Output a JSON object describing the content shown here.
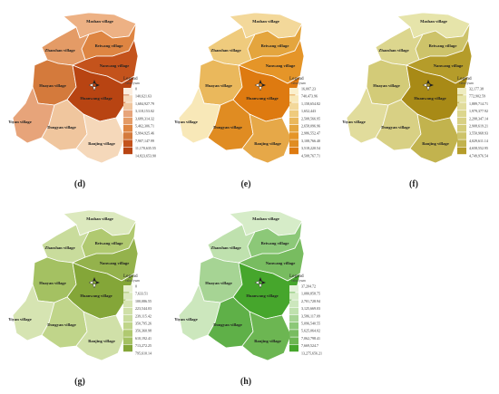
{
  "village_labels": {
    "mashan": "Mashan village",
    "beiwang": "Beiwang village",
    "zhaoshan": "Zhaoshan village",
    "nanwang": "Nanwang village",
    "huayan": "Huayan village",
    "huanwang": "Huanwang village",
    "yiyan": "Yiyan village",
    "dongyan": "Dongyan village",
    "banjing": "Banjing village"
  },
  "legend_title": "Legend",
  "legend_subtitle": "value/yuan",
  "panels": [
    {
      "id": "d",
      "label": "(d)",
      "colors": {
        "mashan": "#edb184",
        "beiwang": "#de8542",
        "zhaoshan": "#e49b66",
        "nanwang": "#c4531c",
        "huayan": "#d47a3c",
        "huanwang": "#b84412",
        "yiyan": "#e7a47a",
        "dongyan": "#f0c69e",
        "banjing": "#f5d8ba"
      },
      "legend_colors": [
        "#fbeee0",
        "#f5d8ba",
        "#f0c69e",
        "#e7a47a",
        "#e49b66",
        "#de8542",
        "#d47a3c",
        "#c4531c",
        "#b84412"
      ],
      "legend_values": [
        "0",
        "140,621.63",
        "1,684,927.79",
        "3,118,153.02",
        "3,689,314.32",
        "5,462,306.71",
        "5,994,925.46",
        "7,907,147.99",
        "11,170,635.55",
        "14,823,653.90"
      ]
    },
    {
      "id": "e",
      "label": "(e)",
      "colors": {
        "mashan": "#f3d89a",
        "beiwang": "#e4a53e",
        "zhaoshan": "#efcb7d",
        "nanwang": "#e59528",
        "huayan": "#eab85c",
        "huanwang": "#de7a10",
        "yiyan": "#f8e8b8",
        "dongyan": "#e08c22",
        "banjing": "#e6a848"
      },
      "legend_colors": [
        "#fbf0cc",
        "#f8e8b8",
        "#f3d89a",
        "#efcb7d",
        "#eab85c",
        "#e4a53e",
        "#e59528",
        "#e08c22",
        "#de7a10"
      ],
      "legend_values": [
        "16,007.23",
        "740,473.96",
        "1,158,654.82",
        "1,652,443",
        "2,508,566.95",
        "2,658,096.96",
        "2,986,552.47",
        "3,108,766.40",
        "3,518,220.54",
        "4,508,767.71"
      ]
    },
    {
      "id": "f",
      "label": "(f)",
      "colors": {
        "mashan": "#e6e4aa",
        "beiwang": "#cdc36a",
        "zhaoshan": "#dcd68e",
        "nanwang": "#b59c2a",
        "huayan": "#d3cb78",
        "huanwang": "#a88a16",
        "yiyan": "#e1dc9c",
        "dongyan": "#d8d084",
        "banjing": "#c2b34e"
      },
      "legend_colors": [
        "#eeecc0",
        "#e6e4aa",
        "#e1dc9c",
        "#dcd68e",
        "#d8d084",
        "#d3cb78",
        "#cdc36a",
        "#c2b34e",
        "#b59c2a"
      ],
      "legend_values": [
        "32,177.38",
        "772,902.59",
        "1,889,714.71",
        "1,979,377.92",
        "2,298,347.14",
        "2,908,619.21",
        "3,550,968.93",
        "4,029,611.14",
        "4,658,552.95",
        "4,749,976.54"
      ]
    },
    {
      "id": "g",
      "label": "(g)",
      "colors": {
        "mashan": "#dce9be",
        "beiwang": "#b0c970",
        "zhaoshan": "#c9dc9c",
        "nanwang": "#94b24c",
        "huayan": "#a4c162",
        "huanwang": "#84a638",
        "yiyan": "#d6e4b2",
        "dongyan": "#c0d58a",
        "banjing": "#d0e0a8"
      },
      "legend_colors": [
        "#e6efce",
        "#dce9be",
        "#d6e4b2",
        "#d0e0a8",
        "#c9dc9c",
        "#c0d58a",
        "#b0c970",
        "#a4c162",
        "#84a638"
      ],
      "legend_values": [
        "0",
        "7,633.51",
        "100,086.55",
        "223,544.03",
        "239,115.42",
        "350,795.26",
        "356,360.98",
        "610,192.41",
        "713,272.25",
        "795,610.14"
      ]
    },
    {
      "id": "h",
      "label": "(h)",
      "colors": {
        "mashan": "#d6ecc8",
        "beiwang": "#8cc878",
        "zhaoshan": "#bfe1ae",
        "nanwang": "#78bc60",
        "huayan": "#a6d494",
        "huanwang": "#46a62c",
        "yiyan": "#cce7bd",
        "dongyan": "#5fb048",
        "banjing": "#6cb652"
      },
      "legend_colors": [
        "#e4f2da",
        "#d6ecc8",
        "#cce7bd",
        "#bfe1ae",
        "#a6d494",
        "#8cc878",
        "#78bc60",
        "#6cb652",
        "#46a62c"
      ],
      "legend_values": [
        "37,204.72",
        "1,080,858.75",
        "2,701,728.94",
        "3,125,669.03",
        "3,586,117.09",
        "5,096,540.55",
        "5,625,064.02",
        "7,062,798.41",
        "7,669,524.7",
        "13,275,656.21"
      ]
    }
  ]
}
